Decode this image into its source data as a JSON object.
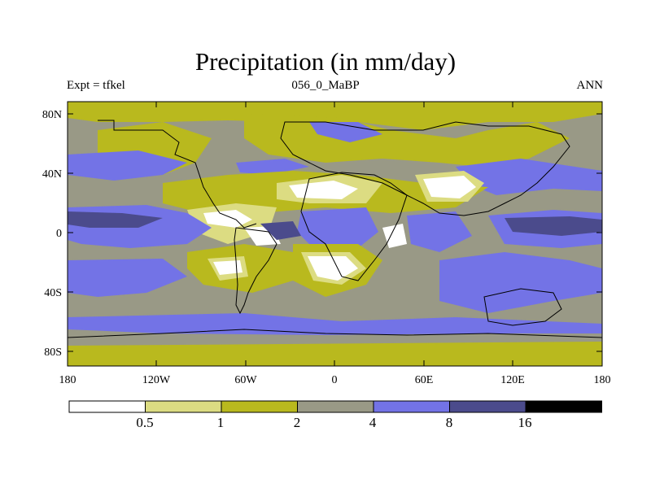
{
  "title": "Precipitation (in mm/day)",
  "subtitle_left": "Expt = tfkel",
  "subtitle_center": "056_0_MaBP",
  "subtitle_right": "ANN",
  "axes": {
    "x_ticks": [
      "180",
      "120W",
      "60W",
      "0",
      "60E",
      "120E",
      "180"
    ],
    "y_ticks": [
      "80N",
      "40N",
      "0",
      "40S",
      "80S"
    ]
  },
  "colorbar": {
    "labels": [
      "0.5",
      "1",
      "2",
      "4",
      "8",
      "16"
    ],
    "colors": [
      "#ffffff",
      "#dcdc82",
      "#b9b91e",
      "#999986",
      "#7373e6",
      "#4b4b8c",
      "#000000"
    ]
  },
  "chart_data": {
    "type": "heatmap",
    "title": "Precipitation (in mm/day)",
    "xlabel": "",
    "ylabel": "",
    "xlim": [
      -180,
      180
    ],
    "ylim": [
      -90,
      90
    ],
    "levels": [
      0.5,
      1,
      2,
      4,
      8,
      16
    ],
    "grid": false,
    "legend": "bottom"
  }
}
